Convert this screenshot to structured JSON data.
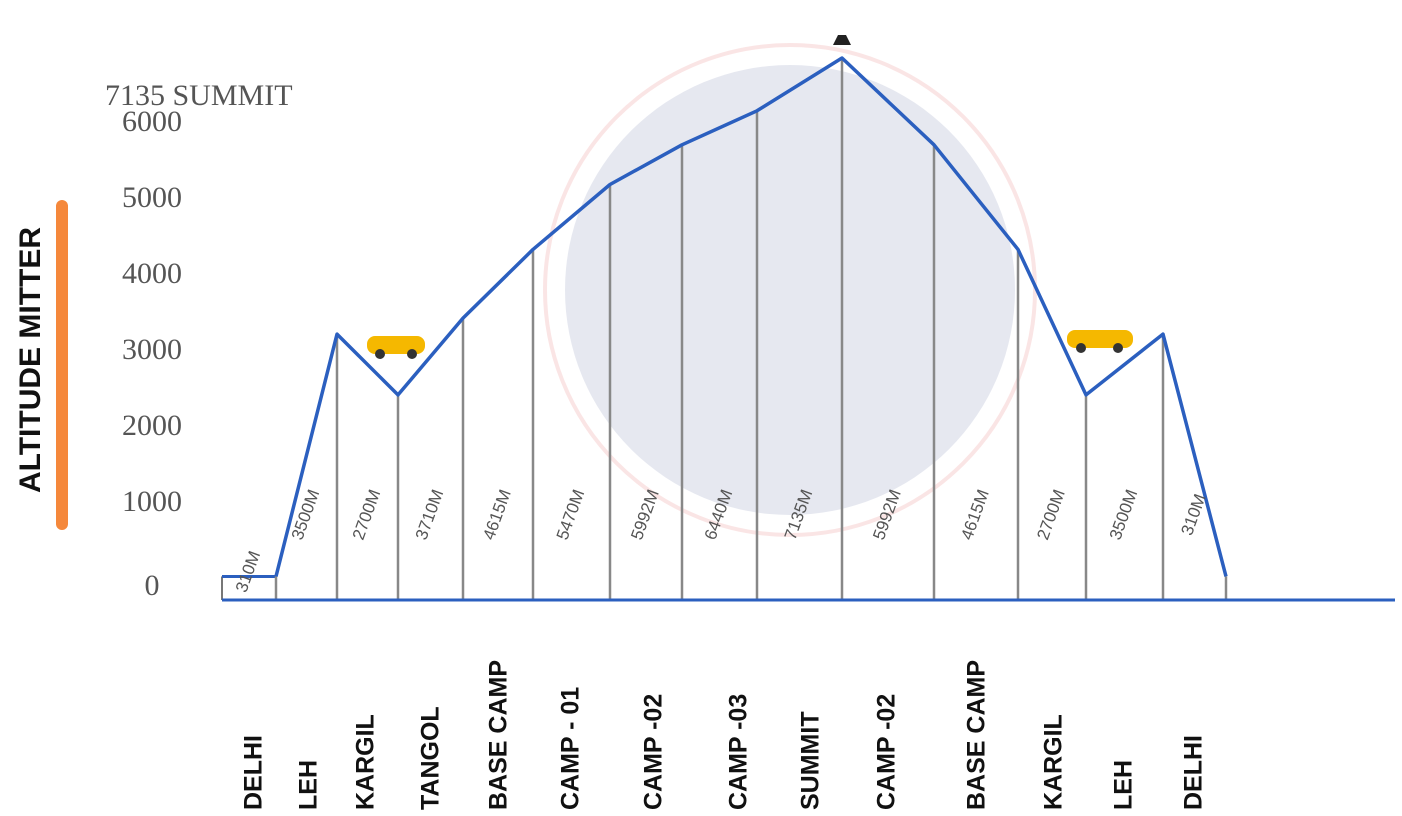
{
  "chart_data": {
    "type": "line",
    "y_label": "ALTITUDE MITTER",
    "categories": [
      "DELHI",
      "LEH",
      "KARGIL",
      "TANGOL",
      "BASE CAMP",
      "CAMP - 01",
      "CAMP -02",
      "CAMP -03",
      "SUMMIT",
      "CAMP -02",
      "BASE CAMP",
      "KARGIL",
      "LEH",
      "DELHI"
    ],
    "values": [
      310,
      3500,
      2700,
      3710,
      4615,
      5470,
      5992,
      6440,
      7135,
      5992,
      4615,
      2700,
      3500,
      310
    ],
    "value_labels": [
      "310M",
      "3500M",
      "2700M",
      "3710M",
      "4615M",
      "5470M",
      "5992M",
      "6440M",
      "7135M",
      "5992M",
      "4615M",
      "2700M",
      "3500M",
      "310M"
    ],
    "color": "#2b5fbf",
    "ylim": [
      0,
      7135
    ],
    "yticks": [
      0,
      1000,
      2000,
      3000,
      4000,
      5000,
      6000,
      {
        "value": 7135,
        "label": "7135 SUMMIT"
      }
    ]
  }
}
